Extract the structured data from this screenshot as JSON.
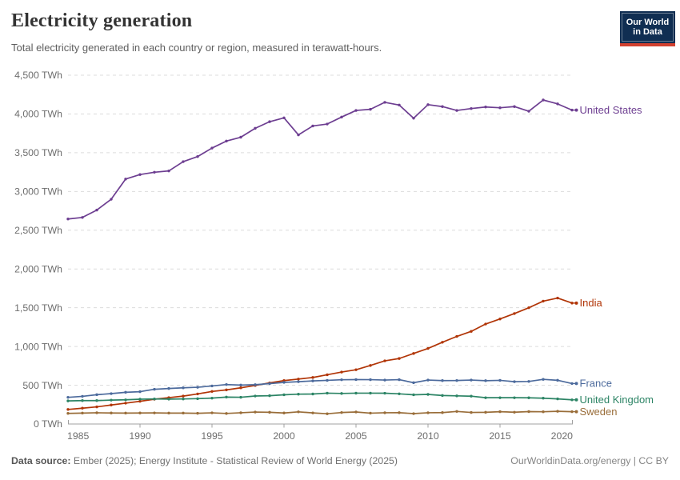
{
  "header": {
    "title": "Electricity generation",
    "subtitle": "Total electricity generated in each country or region, measured in terawatt-hours.",
    "logo": {
      "line1": "Our World",
      "line2": "in Data"
    }
  },
  "chart_data": {
    "type": "line",
    "title": "Electricity generation",
    "xlabel": "",
    "ylabel": "TWh",
    "x": [
      1985,
      1986,
      1987,
      1988,
      1989,
      1990,
      1991,
      1992,
      1993,
      1994,
      1995,
      1996,
      1997,
      1998,
      1999,
      2000,
      2001,
      2002,
      2003,
      2004,
      2005,
      2006,
      2007,
      2008,
      2009,
      2010,
      2011,
      2012,
      2013,
      2014,
      2015,
      2016,
      2017,
      2018,
      2019,
      2020
    ],
    "series": [
      {
        "name": "United States",
        "color": "#6d3e91",
        "values": [
          2645,
          2665,
          2760,
          2900,
          3160,
          3218,
          3248,
          3265,
          3385,
          3450,
          3560,
          3650,
          3700,
          3815,
          3900,
          3950,
          3730,
          3845,
          3870,
          3960,
          4045,
          4060,
          4150,
          4115,
          3945,
          4120,
          4095,
          4045,
          4070,
          4090,
          4080,
          4095,
          4035,
          4180,
          4130,
          4050
        ]
      },
      {
        "name": "India",
        "color": "#b13507",
        "values": [
          188,
          204,
          221,
          245,
          269,
          293,
          320,
          340,
          360,
          388,
          420,
          440,
          467,
          497,
          530,
          560,
          580,
          600,
          635,
          670,
          700,
          755,
          815,
          845,
          910,
          975,
          1055,
          1130,
          1195,
          1290,
          1355,
          1425,
          1500,
          1585,
          1625,
          1560
        ]
      },
      {
        "name": "France",
        "color": "#4c6a9c",
        "values": [
          344,
          357,
          378,
          392,
          409,
          417,
          448,
          458,
          467,
          474,
          491,
          509,
          502,
          507,
          521,
          537,
          546,
          556,
          563,
          571,
          573,
          572,
          567,
          572,
          533,
          567,
          560,
          561,
          567,
          559,
          563,
          546,
          549,
          576,
          564,
          522
        ]
      },
      {
        "name": "United Kingdom",
        "color": "#2c8465",
        "values": [
          298,
          302,
          302,
          308,
          312,
          320,
          323,
          321,
          323,
          327,
          334,
          347,
          345,
          361,
          365,
          377,
          385,
          387,
          398,
          394,
          398,
          398,
          397,
          389,
          377,
          382,
          368,
          363,
          359,
          339,
          339,
          339,
          338,
          333,
          324,
          312
        ]
      },
      {
        "name": "Sweden",
        "color": "#996d39",
        "values": [
          137,
          141,
          145,
          142,
          141,
          142,
          143,
          141,
          141,
          138,
          144,
          136,
          145,
          154,
          151,
          142,
          157,
          143,
          132,
          148,
          155,
          140,
          145,
          146,
          134,
          145,
          147,
          162,
          149,
          151,
          159,
          152,
          160,
          158,
          164,
          159
        ]
      }
    ],
    "ylim": [
      0,
      4500
    ],
    "ytick_values": [
      0,
      500,
      1000,
      1500,
      2000,
      2500,
      3000,
      3500,
      4000,
      4500
    ],
    "ytick_labels": [
      "0 TWh",
      "500 TWh",
      "1,000 TWh",
      "1,500 TWh",
      "2,000 TWh",
      "2,500 TWh",
      "3,000 TWh",
      "3,500 TWh",
      "4,000 TWh",
      "4,500 TWh"
    ],
    "xtick_values": [
      1985,
      1990,
      1995,
      2000,
      2005,
      2010,
      2015,
      2020
    ],
    "xtick_labels": [
      "1985",
      "1990",
      "1995",
      "2000",
      "2005",
      "2010",
      "2015",
      "2020"
    ],
    "grid": "horizontal-dashed",
    "legend_position": "labels-right-of-lines"
  },
  "footer": {
    "source_label": "Data source:",
    "source_text": " Ember (2025); Energy Institute - Statistical Review of World Energy (2025)",
    "credit": "OurWorldinData.org/energy | CC BY"
  },
  "colors": {
    "grid": "#dcdcdc",
    "axis": "#a0a0a0",
    "tick_text": "#6e6e6e",
    "logo_navy": "#102e52",
    "logo_red": "#d2402f"
  }
}
